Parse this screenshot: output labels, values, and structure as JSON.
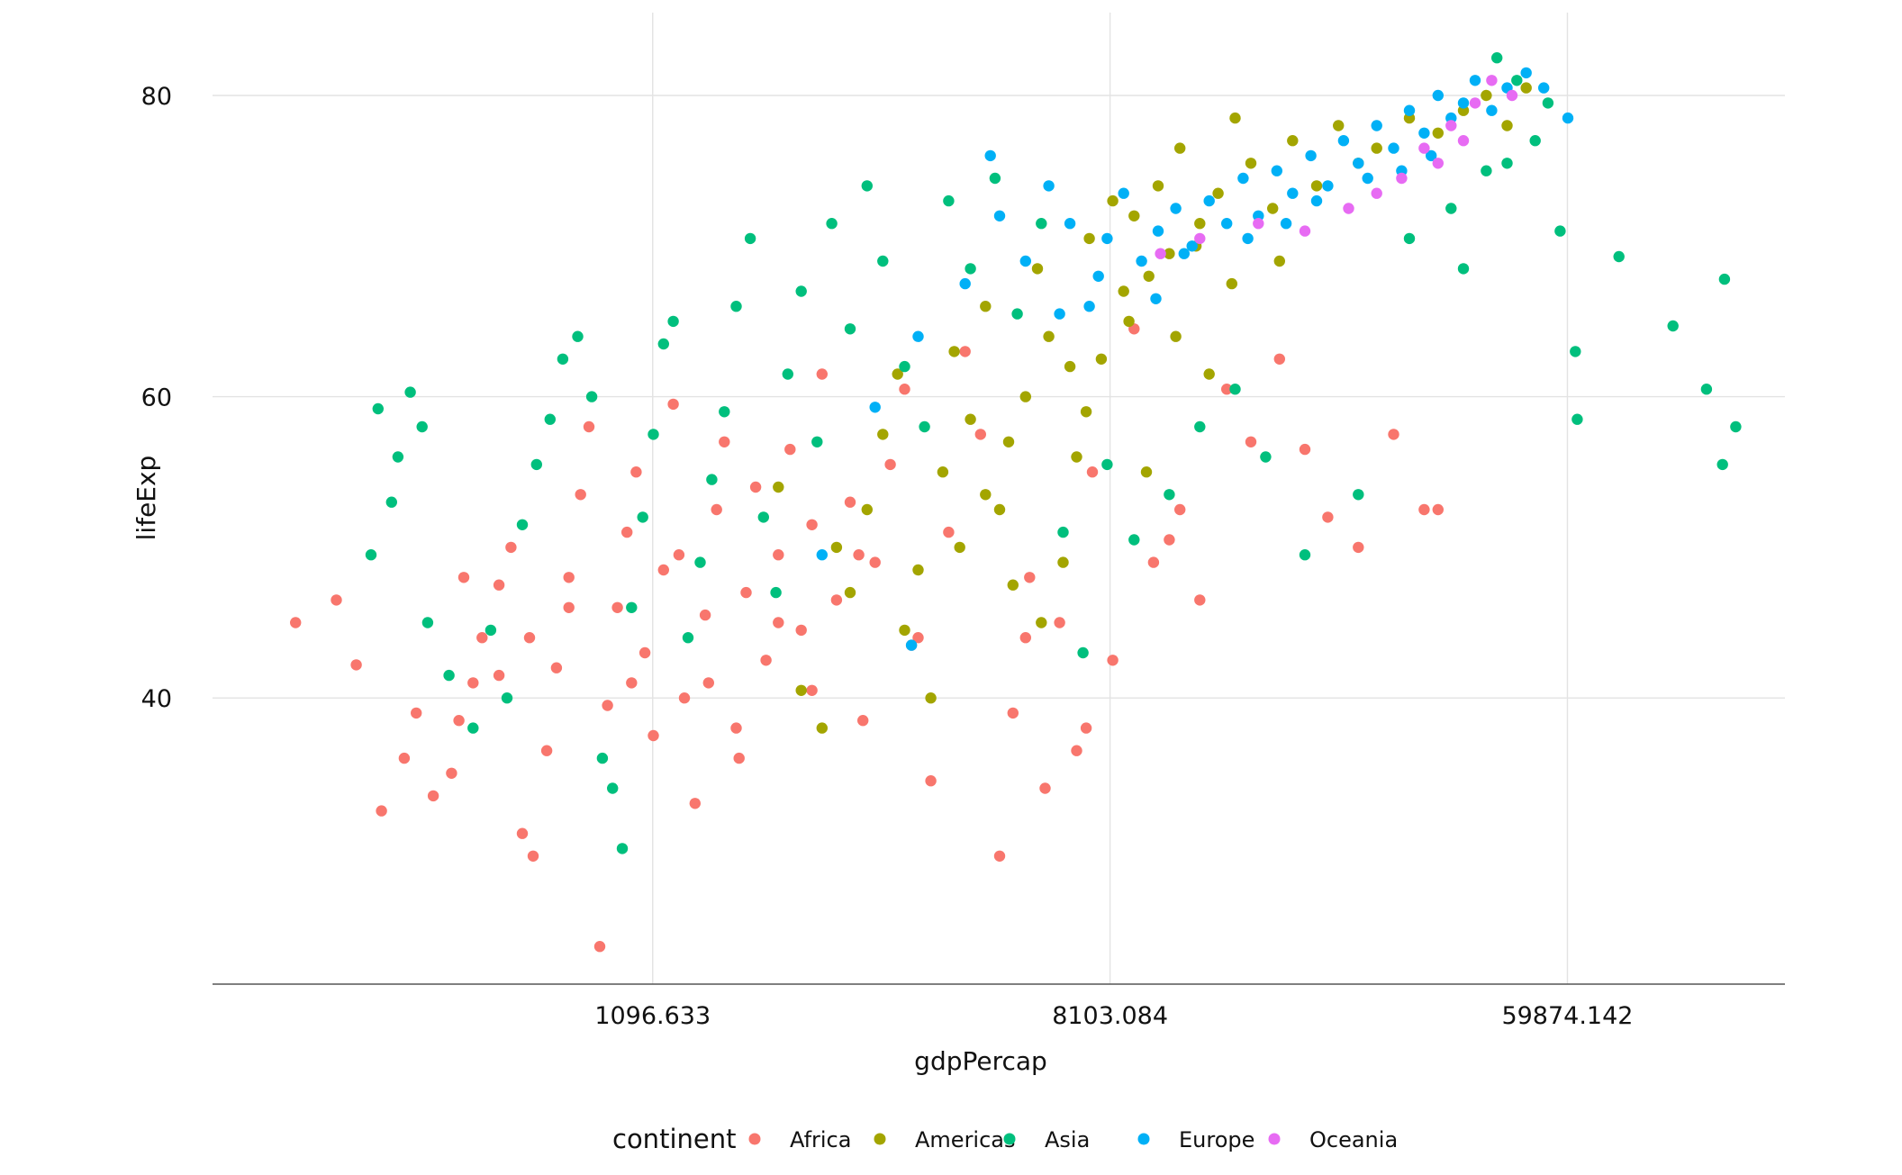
{
  "chart_data": {
    "type": "scatter",
    "title": "",
    "xlabel": "gdpPercap",
    "ylabel": "lifeExp",
    "x_scale": "log",
    "xlim": [
      160,
      155000
    ],
    "ylim": [
      21,
      85.5
    ],
    "x_ticks": [
      1096.633,
      8103.084,
      59874.142
    ],
    "x_tick_labels": [
      "1096.633",
      "8103.084",
      "59874.142"
    ],
    "y_ticks": [
      40,
      60,
      80
    ],
    "y_tick_labels": [
      "40",
      "60",
      "80"
    ],
    "grid": true,
    "legend_title": "continent",
    "legend_position": "bottom",
    "colors": {
      "Africa": "#F8766D",
      "Americas": "#A3A500",
      "Asia": "#00BF7D",
      "Europe": "#00B0F6",
      "Oceania": "#E76BF3"
    },
    "series": [
      {
        "name": "Africa",
        "points": [
          [
            230,
            45.0
          ],
          [
            275,
            46.5
          ],
          [
            300,
            42.2
          ],
          [
            335,
            32.5
          ],
          [
            370,
            36.0
          ],
          [
            390,
            39.0
          ],
          [
            420,
            33.5
          ],
          [
            455,
            35.0
          ],
          [
            470,
            38.5
          ],
          [
            500,
            41.0
          ],
          [
            520,
            44.0
          ],
          [
            560,
            47.5
          ],
          [
            590,
            50.0
          ],
          [
            620,
            31.0
          ],
          [
            650,
            29.5
          ],
          [
            690,
            36.5
          ],
          [
            720,
            42.0
          ],
          [
            760,
            48.0
          ],
          [
            800,
            53.5
          ],
          [
            830,
            58.0
          ],
          [
            870,
            23.5
          ],
          [
            900,
            39.5
          ],
          [
            940,
            46.0
          ],
          [
            980,
            51.0
          ],
          [
            1020,
            55.0
          ],
          [
            1060,
            43.0
          ],
          [
            1100,
            37.5
          ],
          [
            1150,
            48.5
          ],
          [
            1200,
            59.5
          ],
          [
            1260,
            40.0
          ],
          [
            1320,
            33.0
          ],
          [
            1380,
            45.5
          ],
          [
            1450,
            52.5
          ],
          [
            1500,
            57.0
          ],
          [
            1580,
            38.0
          ],
          [
            1650,
            47.0
          ],
          [
            1720,
            54.0
          ],
          [
            1800,
            42.5
          ],
          [
            1900,
            49.5
          ],
          [
            2000,
            56.5
          ],
          [
            2100,
            44.5
          ],
          [
            2200,
            51.5
          ],
          [
            2300,
            61.5
          ],
          [
            2450,
            46.5
          ],
          [
            2600,
            53.0
          ],
          [
            2750,
            38.5
          ],
          [
            2900,
            49.0
          ],
          [
            3100,
            55.5
          ],
          [
            3300,
            60.5
          ],
          [
            3500,
            44.0
          ],
          [
            3700,
            34.5
          ],
          [
            4000,
            51.0
          ],
          [
            4300,
            63.0
          ],
          [
            4600,
            57.5
          ],
          [
            5000,
            29.5
          ],
          [
            5300,
            39.0
          ],
          [
            5700,
            48.0
          ],
          [
            6100,
            34.0
          ],
          [
            6500,
            45.0
          ],
          [
            7000,
            36.5
          ],
          [
            7500,
            55.0
          ],
          [
            8200,
            42.5
          ],
          [
            9000,
            64.5
          ],
          [
            9800,
            49.0
          ],
          [
            11000,
            52.5
          ],
          [
            12000,
            46.5
          ],
          [
            13500,
            60.5
          ],
          [
            15000,
            57.0
          ],
          [
            17000,
            62.5
          ],
          [
            19000,
            56.5
          ],
          [
            21000,
            52.0
          ],
          [
            24000,
            50.0
          ],
          [
            28000,
            57.5
          ],
          [
            32000,
            52.5
          ],
          [
            34000,
            52.5
          ],
          [
            640,
            44.0
          ],
          [
            560,
            41.5
          ],
          [
            480,
            48.0
          ],
          [
            760,
            46.0
          ],
          [
            1000,
            41.0
          ],
          [
            1230,
            49.5
          ],
          [
            1400,
            41.0
          ],
          [
            1600,
            36.0
          ],
          [
            1900,
            45.0
          ],
          [
            2200,
            40.5
          ],
          [
            2700,
            49.5
          ],
          [
            3400,
            43.5
          ],
          [
            5600,
            44.0
          ],
          [
            7300,
            38.0
          ],
          [
            10500,
            50.5
          ]
        ]
      },
      {
        "name": "Americas",
        "points": [
          [
            1900,
            54.0
          ],
          [
            2100,
            40.5
          ],
          [
            2300,
            38.0
          ],
          [
            2600,
            47.0
          ],
          [
            2800,
            52.5
          ],
          [
            3000,
            57.5
          ],
          [
            3200,
            61.5
          ],
          [
            3500,
            48.5
          ],
          [
            3700,
            40.0
          ],
          [
            3900,
            55.0
          ],
          [
            4100,
            63.0
          ],
          [
            4400,
            58.5
          ],
          [
            4700,
            66.0
          ],
          [
            5000,
            52.5
          ],
          [
            5300,
            47.5
          ],
          [
            5600,
            60.0
          ],
          [
            5900,
            68.5
          ],
          [
            6200,
            64.0
          ],
          [
            6600,
            49.0
          ],
          [
            7000,
            56.0
          ],
          [
            7400,
            70.5
          ],
          [
            7800,
            62.5
          ],
          [
            8200,
            73.0
          ],
          [
            8600,
            67.0
          ],
          [
            9000,
            72.0
          ],
          [
            9500,
            55.0
          ],
          [
            10000,
            74.0
          ],
          [
            10500,
            69.5
          ],
          [
            11000,
            76.5
          ],
          [
            12000,
            71.5
          ],
          [
            13000,
            73.5
          ],
          [
            14000,
            78.5
          ],
          [
            15000,
            75.5
          ],
          [
            16500,
            72.5
          ],
          [
            18000,
            77.0
          ],
          [
            20000,
            74.0
          ],
          [
            22000,
            78.0
          ],
          [
            24000,
            75.5
          ],
          [
            26000,
            76.5
          ],
          [
            30000,
            78.5
          ],
          [
            34000,
            77.5
          ],
          [
            38000,
            79.0
          ],
          [
            42000,
            80.0
          ],
          [
            46000,
            78.0
          ],
          [
            50000,
            80.5
          ],
          [
            4200,
            50.0
          ],
          [
            6000,
            45.0
          ],
          [
            5200,
            57.0
          ],
          [
            8800,
            65.0
          ],
          [
            12500,
            61.5
          ],
          [
            3300,
            44.5
          ],
          [
            4700,
            53.5
          ],
          [
            7300,
            59.0
          ],
          [
            9600,
            68.0
          ],
          [
            11800,
            70.0
          ],
          [
            2450,
            50.0
          ],
          [
            6800,
            62.0
          ],
          [
            10800,
            64.0
          ],
          [
            13800,
            67.5
          ],
          [
            17000,
            69.0
          ]
        ]
      },
      {
        "name": "Asia",
        "points": [
          [
            330,
            59.2
          ],
          [
            360,
            56.0
          ],
          [
            380,
            60.3
          ],
          [
            400,
            58.0
          ],
          [
            320,
            49.5
          ],
          [
            350,
            53.0
          ],
          [
            410,
            45.0
          ],
          [
            450,
            41.5
          ],
          [
            500,
            38.0
          ],
          [
            540,
            44.5
          ],
          [
            580,
            40.0
          ],
          [
            620,
            51.5
          ],
          [
            660,
            55.5
          ],
          [
            700,
            58.5
          ],
          [
            740,
            62.5
          ],
          [
            790,
            64.0
          ],
          [
            840,
            60.0
          ],
          [
            880,
            36.0
          ],
          [
            920,
            34.0
          ],
          [
            960,
            30.0
          ],
          [
            1000,
            46.0
          ],
          [
            1050,
            52.0
          ],
          [
            1100,
            57.5
          ],
          [
            1150,
            63.5
          ],
          [
            1200,
            65.0
          ],
          [
            1280,
            44.0
          ],
          [
            1350,
            49.0
          ],
          [
            1420,
            54.5
          ],
          [
            1500,
            59.0
          ],
          [
            1580,
            66.0
          ],
          [
            1680,
            70.5
          ],
          [
            1780,
            52.0
          ],
          [
            1880,
            47.0
          ],
          [
            1980,
            61.5
          ],
          [
            2100,
            67.0
          ],
          [
            2250,
            57.0
          ],
          [
            2400,
            71.5
          ],
          [
            2600,
            64.5
          ],
          [
            2800,
            74.0
          ],
          [
            3000,
            69.0
          ],
          [
            3300,
            62.0
          ],
          [
            3600,
            58.0
          ],
          [
            4000,
            73.0
          ],
          [
            4400,
            68.5
          ],
          [
            4900,
            74.5
          ],
          [
            5400,
            65.5
          ],
          [
            6000,
            71.5
          ],
          [
            6600,
            51.0
          ],
          [
            7200,
            43.0
          ],
          [
            8000,
            55.5
          ],
          [
            9000,
            50.5
          ],
          [
            10500,
            53.5
          ],
          [
            12000,
            58.0
          ],
          [
            14000,
            60.5
          ],
          [
            16000,
            56.0
          ],
          [
            19000,
            49.5
          ],
          [
            24000,
            53.5
          ],
          [
            30000,
            70.5
          ],
          [
            36000,
            72.5
          ],
          [
            42000,
            75.0
          ],
          [
            48000,
            81.0
          ],
          [
            44000,
            82.5
          ],
          [
            52000,
            77.0
          ],
          [
            58000,
            71.0
          ],
          [
            38000,
            68.5
          ],
          [
            62000,
            63.0
          ],
          [
            62500,
            58.5
          ],
          [
            75000,
            69.3
          ],
          [
            95000,
            64.7
          ],
          [
            110000,
            60.5
          ],
          [
            118000,
            55.5
          ],
          [
            119000,
            67.8
          ],
          [
            125000,
            58.0
          ],
          [
            55000,
            79.5
          ],
          [
            46000,
            75.5
          ]
        ]
      },
      {
        "name": "Europe",
        "points": [
          [
            2900,
            59.3
          ],
          [
            3500,
            64.0
          ],
          [
            4300,
            67.5
          ],
          [
            5000,
            72.0
          ],
          [
            5600,
            69.0
          ],
          [
            6200,
            74.0
          ],
          [
            6800,
            71.5
          ],
          [
            7400,
            66.0
          ],
          [
            8000,
            70.5
          ],
          [
            8600,
            73.5
          ],
          [
            9300,
            69.0
          ],
          [
            10000,
            71.0
          ],
          [
            10800,
            72.5
          ],
          [
            11600,
            70.0
          ],
          [
            12500,
            73.0
          ],
          [
            13500,
            71.5
          ],
          [
            14500,
            74.5
          ],
          [
            15500,
            72.0
          ],
          [
            16800,
            75.0
          ],
          [
            18000,
            73.5
          ],
          [
            19500,
            76.0
          ],
          [
            21000,
            74.0
          ],
          [
            22500,
            77.0
          ],
          [
            24000,
            75.5
          ],
          [
            26000,
            78.0
          ],
          [
            28000,
            76.5
          ],
          [
            30000,
            79.0
          ],
          [
            32000,
            77.5
          ],
          [
            34000,
            80.0
          ],
          [
            36000,
            78.5
          ],
          [
            38000,
            79.5
          ],
          [
            40000,
            81.0
          ],
          [
            43000,
            79.0
          ],
          [
            46000,
            80.5
          ],
          [
            50000,
            81.5
          ],
          [
            54000,
            80.5
          ],
          [
            60000,
            78.5
          ],
          [
            4800,
            76.0
          ],
          [
            6500,
            65.5
          ],
          [
            7700,
            68.0
          ],
          [
            9900,
            66.5
          ],
          [
            11200,
            69.5
          ],
          [
            14800,
            70.5
          ],
          [
            20000,
            73.0
          ],
          [
            25000,
            74.5
          ],
          [
            3400,
            43.5
          ],
          [
            2300,
            49.5
          ],
          [
            17500,
            71.5
          ],
          [
            29000,
            75.0
          ],
          [
            33000,
            76.0
          ]
        ]
      },
      {
        "name": "Oceania",
        "points": [
          [
            10100,
            69.5
          ],
          [
            12000,
            70.5
          ],
          [
            15500,
            71.5
          ],
          [
            19000,
            71.0
          ],
          [
            23000,
            72.5
          ],
          [
            26000,
            73.5
          ],
          [
            29000,
            74.5
          ],
          [
            32000,
            76.5
          ],
          [
            36000,
            78.0
          ],
          [
            40000,
            79.5
          ],
          [
            43000,
            81.0
          ],
          [
            47000,
            80.0
          ],
          [
            38000,
            77.0
          ],
          [
            34000,
            75.5
          ]
        ]
      }
    ]
  }
}
